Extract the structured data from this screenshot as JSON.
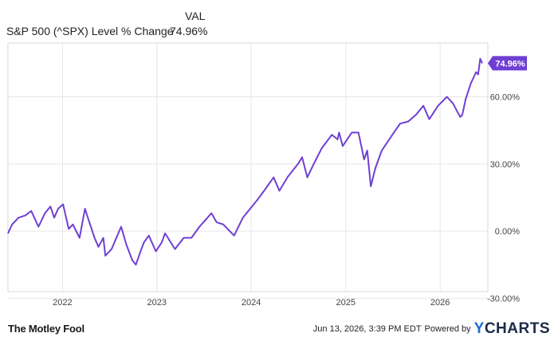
{
  "legend": {
    "column_header": "VAL",
    "series_label": "S&P 500 (^SPX) Level % Change",
    "series_value": "74.96%"
  },
  "footer": {
    "brand": "The Motley Fool",
    "timestamp": "Jun 13, 2026, 3:39 PM EDT",
    "powered_by": "Powered by",
    "ycharts_y": "Y",
    "ycharts_rest": "CHARTS"
  },
  "colors": {
    "series": "#6f3fd3",
    "grid": "#e6e6e6",
    "axis_text": "#444444"
  },
  "chart_data": {
    "type": "line",
    "title": "",
    "xlabel": "",
    "ylabel": "",
    "x_ticks": [
      "2022",
      "2023",
      "2024",
      "2025",
      "2026"
    ],
    "y_ticks": [
      "60.00%",
      "30.00%",
      "0.00%",
      "-30.00%"
    ],
    "y_tick_values": [
      60,
      30,
      0,
      -30
    ],
    "ylim": [
      -27,
      84
    ],
    "xlim": [
      "2021-06-04",
      "2026-06-13"
    ],
    "grid": true,
    "end_label": "74.96%",
    "series": [
      {
        "name": "S&P 500 (^SPX) Level % Change",
        "points": [
          [
            "2021-06-04",
            -1
          ],
          [
            "2021-06-20",
            3
          ],
          [
            "2021-07-15",
            6
          ],
          [
            "2021-08-10",
            7
          ],
          [
            "2021-09-02",
            9
          ],
          [
            "2021-09-30",
            2
          ],
          [
            "2021-10-25",
            8
          ],
          [
            "2021-11-15",
            11
          ],
          [
            "2021-11-30",
            6
          ],
          [
            "2021-12-15",
            10
          ],
          [
            "2022-01-03",
            12
          ],
          [
            "2022-01-25",
            1
          ],
          [
            "2022-02-10",
            3
          ],
          [
            "2022-03-08",
            -3
          ],
          [
            "2022-03-29",
            10
          ],
          [
            "2022-04-15",
            4
          ],
          [
            "2022-05-05",
            -3
          ],
          [
            "2022-05-20",
            -7
          ],
          [
            "2022-06-08",
            -3
          ],
          [
            "2022-06-16",
            -11
          ],
          [
            "2022-07-10",
            -8
          ],
          [
            "2022-08-01",
            -2
          ],
          [
            "2022-08-16",
            2
          ],
          [
            "2022-09-05",
            -6
          ],
          [
            "2022-09-28",
            -13
          ],
          [
            "2022-10-12",
            -15
          ],
          [
            "2022-10-30",
            -9
          ],
          [
            "2022-11-12",
            -5
          ],
          [
            "2022-12-01",
            -2
          ],
          [
            "2022-12-28",
            -9
          ],
          [
            "2023-01-20",
            -5
          ],
          [
            "2023-02-02",
            -1
          ],
          [
            "2023-03-12",
            -8
          ],
          [
            "2023-04-15",
            -3
          ],
          [
            "2023-05-15",
            -3
          ],
          [
            "2023-06-15",
            2
          ],
          [
            "2023-07-31",
            8
          ],
          [
            "2023-08-20",
            4
          ],
          [
            "2023-09-15",
            3
          ],
          [
            "2023-10-27",
            -2
          ],
          [
            "2023-11-30",
            6
          ],
          [
            "2023-12-28",
            10
          ],
          [
            "2024-01-25",
            14
          ],
          [
            "2024-02-20",
            18
          ],
          [
            "2024-03-28",
            24
          ],
          [
            "2024-04-19",
            18
          ],
          [
            "2024-05-20",
            24
          ],
          [
            "2024-06-30",
            30
          ],
          [
            "2024-07-16",
            33
          ],
          [
            "2024-08-05",
            24
          ],
          [
            "2024-08-30",
            30
          ],
          [
            "2024-09-30",
            37
          ],
          [
            "2024-11-08",
            43
          ],
          [
            "2024-11-30",
            41
          ],
          [
            "2024-12-06",
            44
          ],
          [
            "2024-12-20",
            38
          ],
          [
            "2025-01-24",
            44
          ],
          [
            "2025-02-19",
            44
          ],
          [
            "2025-03-13",
            32
          ],
          [
            "2025-03-25",
            36
          ],
          [
            "2025-04-08",
            20
          ],
          [
            "2025-04-25",
            28
          ],
          [
            "2025-05-20",
            36
          ],
          [
            "2025-06-30",
            43
          ],
          [
            "2025-07-30",
            48
          ],
          [
            "2025-08-31",
            49
          ],
          [
            "2025-09-30",
            52
          ],
          [
            "2025-10-28",
            56
          ],
          [
            "2025-11-20",
            50
          ],
          [
            "2025-12-24",
            56
          ],
          [
            "2026-01-27",
            60
          ],
          [
            "2026-02-20",
            57
          ],
          [
            "2026-03-10",
            53
          ],
          [
            "2026-03-20",
            51
          ],
          [
            "2026-03-28",
            52
          ],
          [
            "2026-04-10",
            59
          ],
          [
            "2026-04-30",
            66
          ],
          [
            "2026-05-20",
            71
          ],
          [
            "2026-05-28",
            70
          ],
          [
            "2026-06-05",
            77
          ],
          [
            "2026-06-13",
            74.96
          ]
        ]
      }
    ]
  }
}
